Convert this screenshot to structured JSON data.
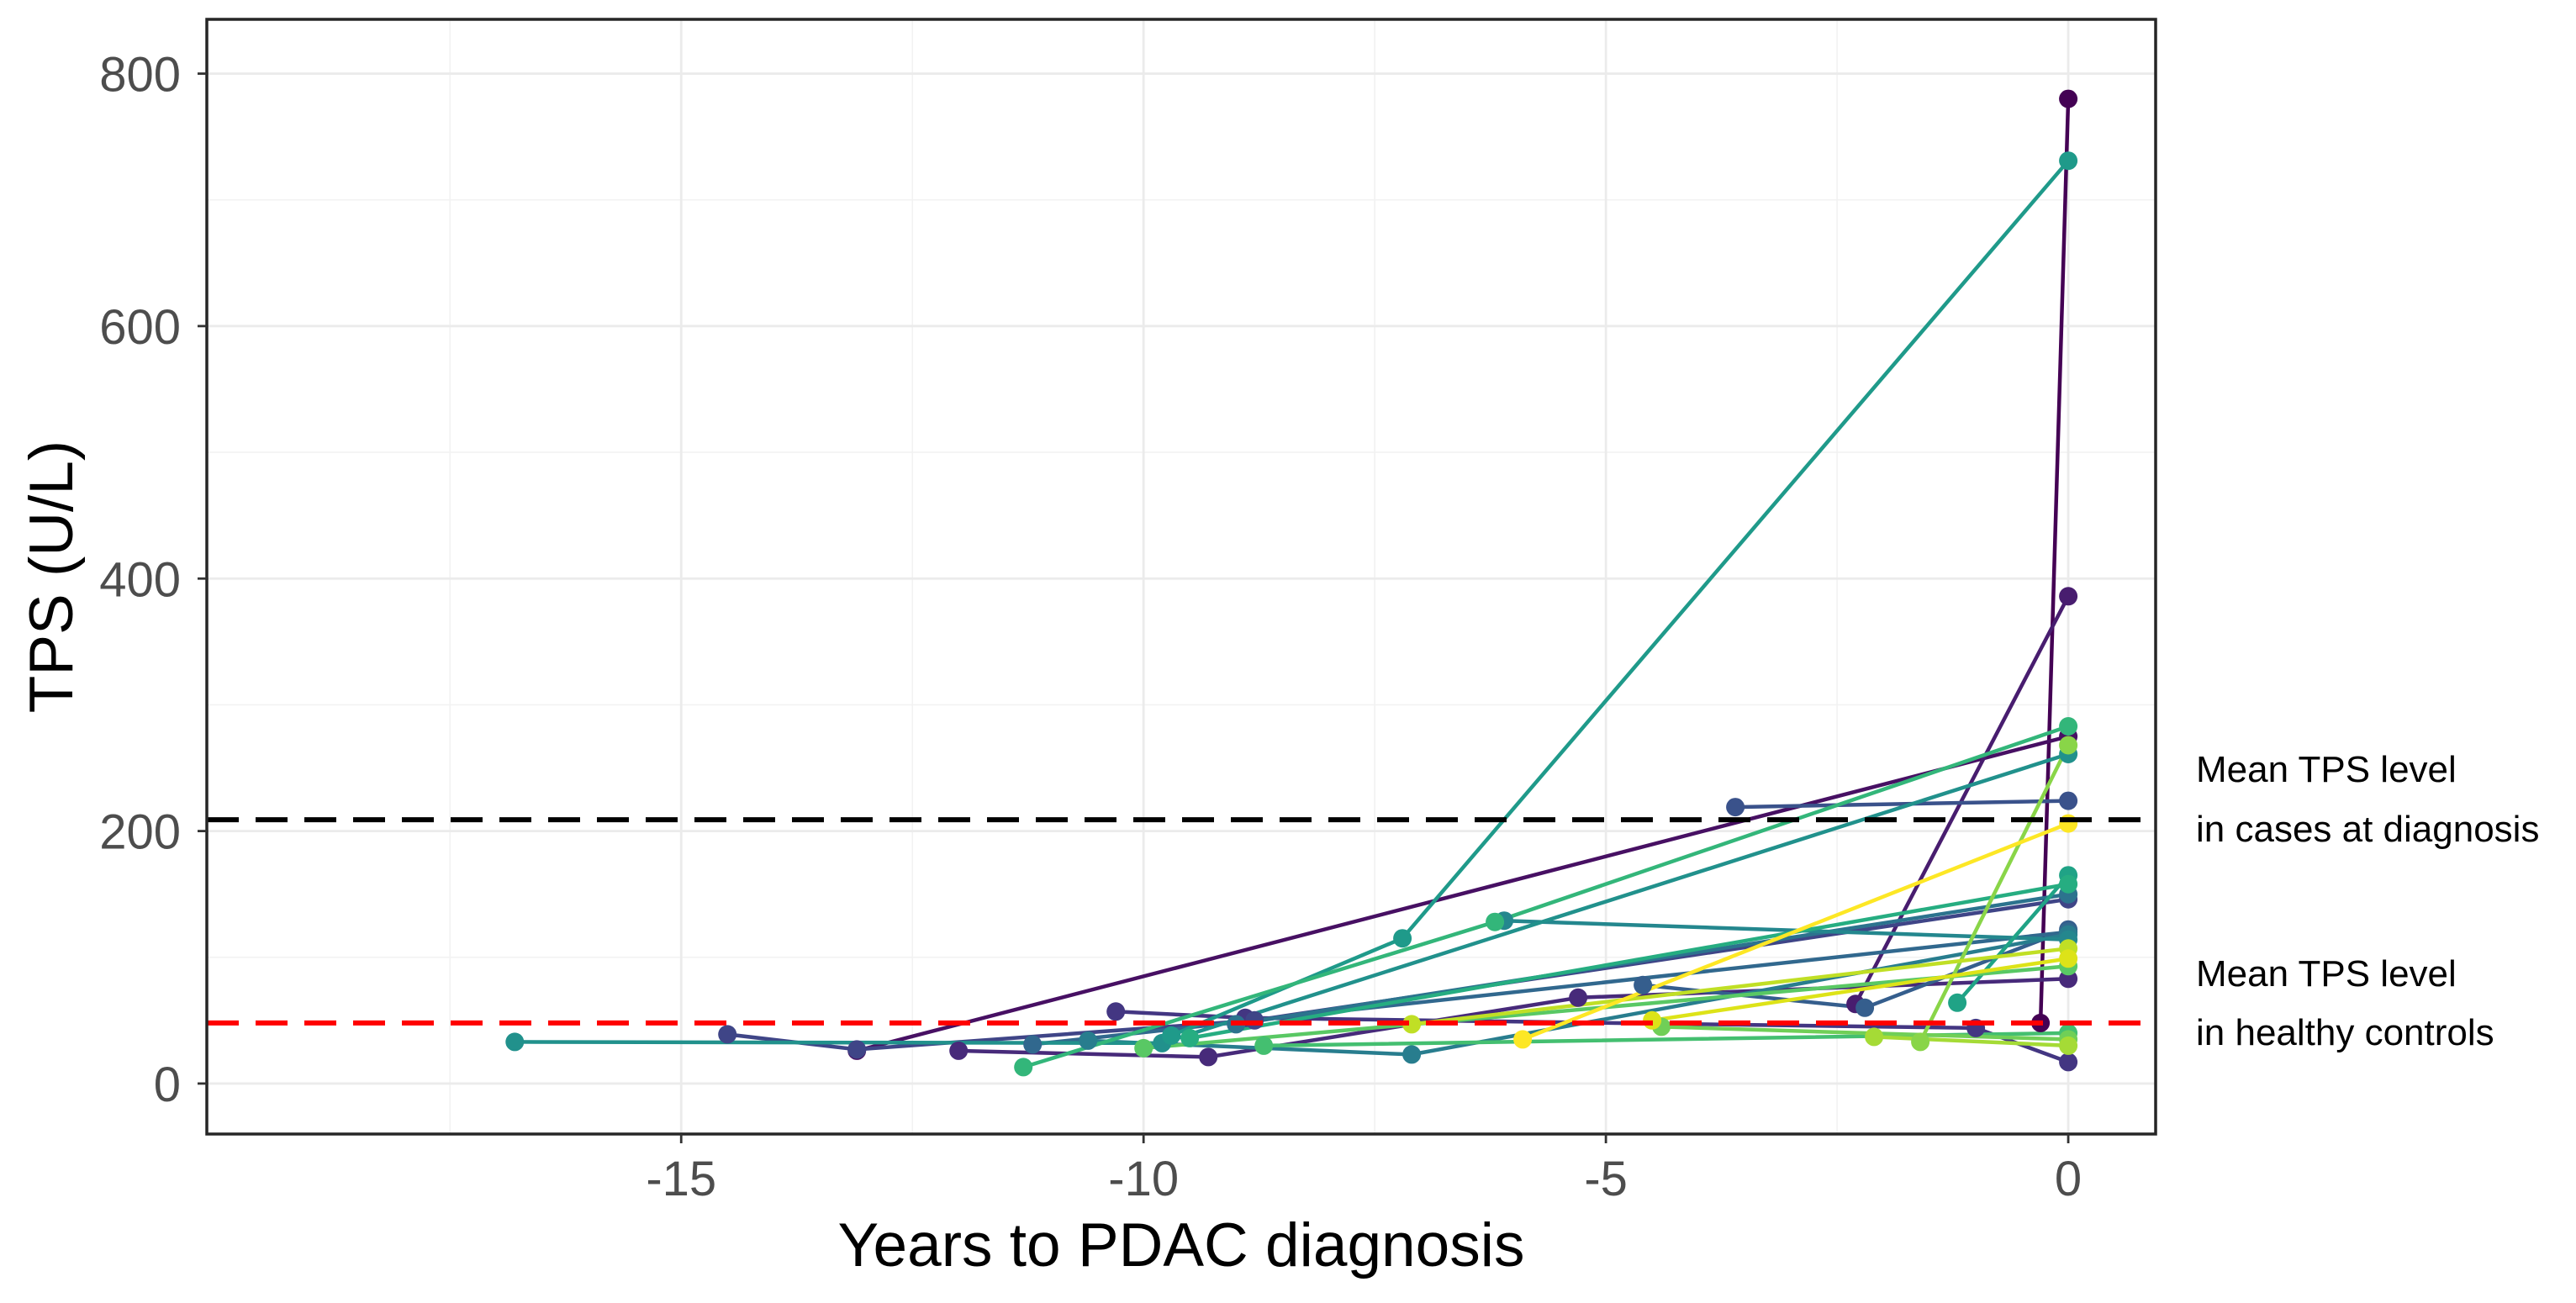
{
  "chart_data": {
    "type": "line",
    "xlabel": "Years to PDAC diagnosis",
    "ylabel": "TPS (U/L)",
    "xlim": [
      -20.13,
      0.945
    ],
    "ylim": [
      -40,
      843
    ],
    "x_ticks": [
      -15,
      -10,
      -5,
      0
    ],
    "x_tick_labels": [
      "-15",
      "-10",
      "-5",
      "0"
    ],
    "x_minor": [
      -17.5,
      -12.5,
      -7.5,
      -2.5
    ],
    "y_ticks": [
      0,
      200,
      400,
      600,
      800
    ],
    "y_tick_labels": [
      "0",
      "200",
      "400",
      "600",
      "800"
    ],
    "y_minor": [
      100,
      300,
      500,
      700
    ],
    "grid": true,
    "reference_lines": [
      {
        "y": 209,
        "color": "#000000",
        "dash": true,
        "label": [
          "Mean TPS level",
          "in cases at diagnosis"
        ]
      },
      {
        "y": 48,
        "color": "#FF0000",
        "dash": true,
        "label": [
          "Mean TPS level",
          "in healthy controls"
        ]
      }
    ],
    "series": [
      {
        "color": "#440154",
        "points": [
          [
            -0.3,
            48
          ],
          [
            0,
            780
          ]
        ]
      },
      {
        "color": "#471063",
        "points": [
          [
            -13.1,
            26
          ],
          [
            0,
            275
          ]
        ]
      },
      {
        "color": "#481D6F",
        "points": [
          [
            -2.3,
            63
          ],
          [
            0,
            386
          ]
        ]
      },
      {
        "color": "#472A7A",
        "points": [
          [
            -12.0,
            26
          ],
          [
            -9.3,
            21
          ],
          [
            -5.3,
            68
          ],
          [
            0,
            83
          ]
        ]
      },
      {
        "color": "#433682",
        "points": [
          [
            -10.3,
            57
          ],
          [
            -8.9,
            52
          ],
          [
            -1.0,
            44
          ],
          [
            0,
            17
          ]
        ]
      },
      {
        "color": "#3F4587",
        "points": [
          [
            -14.5,
            39
          ],
          [
            -13.1,
            27
          ],
          [
            -8.8,
            50
          ],
          [
            0,
            146
          ]
        ]
      },
      {
        "color": "#3A528B",
        "points": [
          [
            -3.6,
            219
          ],
          [
            0,
            224
          ]
        ]
      },
      {
        "color": "#355E8D",
        "points": [
          [
            -4.6,
            78
          ],
          [
            -2.2,
            60
          ],
          [
            0,
            122
          ]
        ]
      },
      {
        "color": "#31688E",
        "points": [
          [
            -11.2,
            31
          ],
          [
            0,
            120
          ]
        ]
      },
      {
        "color": "#2C738E",
        "points": [
          [
            -9.0,
            47
          ],
          [
            0,
            150
          ]
        ]
      },
      {
        "color": "#287D8E",
        "points": [
          [
            -10.6,
            34
          ],
          [
            -7.1,
            23
          ],
          [
            0,
            118
          ]
        ]
      },
      {
        "color": "#24878E",
        "points": [
          [
            -6.1,
            129
          ],
          [
            0,
            114
          ]
        ]
      },
      {
        "color": "#21918C",
        "points": [
          [
            -16.8,
            33
          ],
          [
            -9.8,
            32
          ],
          [
            0,
            261
          ]
        ]
      },
      {
        "color": "#1F9A8A",
        "points": [
          [
            -9.7,
            38
          ],
          [
            -7.2,
            115
          ],
          [
            0,
            731
          ]
        ]
      },
      {
        "color": "#20A386",
        "points": [
          [
            -1.2,
            64
          ],
          [
            0,
            165
          ]
        ]
      },
      {
        "color": "#26AD81",
        "points": [
          [
            -9.5,
            36
          ],
          [
            0,
            158
          ]
        ]
      },
      {
        "color": "#33B67A",
        "points": [
          [
            -11.3,
            13
          ],
          [
            -6.2,
            128
          ],
          [
            0,
            283
          ]
        ]
      },
      {
        "color": "#44BF70",
        "points": [
          [
            -8.7,
            30
          ],
          [
            0,
            40
          ]
        ]
      },
      {
        "color": "#59C864",
        "points": [
          [
            -10.0,
            28
          ],
          [
            0,
            93
          ]
        ]
      },
      {
        "color": "#70CF57",
        "points": [
          [
            -4.4,
            45
          ],
          [
            0,
            35
          ]
        ]
      },
      {
        "color": "#89D548",
        "points": [
          [
            -1.6,
            33
          ],
          [
            0,
            268
          ]
        ]
      },
      {
        "color": "#A5DB36",
        "points": [
          [
            -2.1,
            37
          ],
          [
            0,
            30
          ]
        ]
      },
      {
        "color": "#C0DF25",
        "points": [
          [
            -7.1,
            47
          ],
          [
            0,
            107
          ]
        ]
      },
      {
        "color": "#DDE318",
        "points": [
          [
            -4.5,
            50
          ],
          [
            0,
            99
          ]
        ]
      },
      {
        "color": "#FDE725",
        "points": [
          [
            -5.9,
            35
          ],
          [
            0,
            206
          ]
        ]
      }
    ]
  }
}
